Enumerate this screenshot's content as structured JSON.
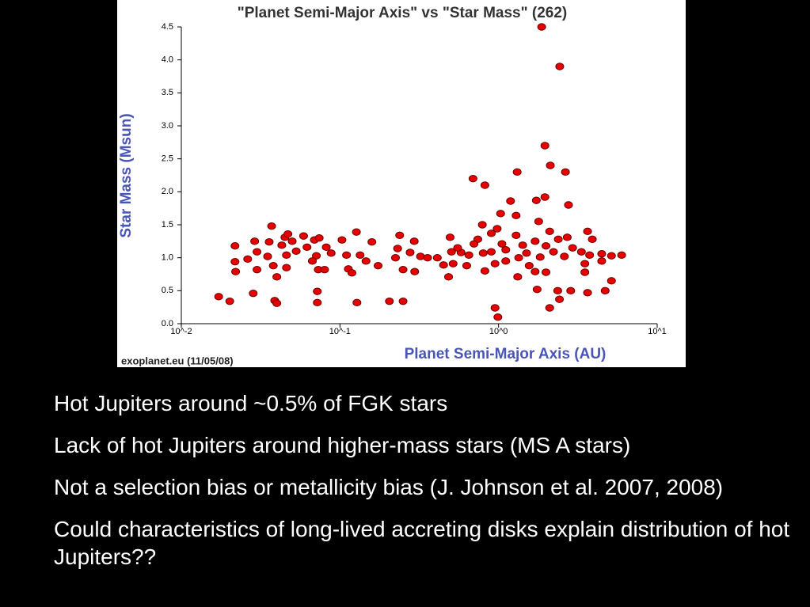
{
  "chart_data": {
    "type": "scatter",
    "title": "\"Planet Semi-Major Axis\"  vs \"Star Mass\" (262)",
    "x_label": "Planet Semi-Major Axis (AU)",
    "y_label": "Star Mass (Msun)",
    "source": "exoplanet.eu (11/05/08)",
    "x_scale": "log",
    "color": "#e80000",
    "xlim": [
      0.01,
      10
    ],
    "xticks": [
      {
        "value": 0.01,
        "label": "10^-2"
      },
      {
        "value": 0.1,
        "label": "10^-1"
      },
      {
        "value": 1,
        "label": "10^0"
      },
      {
        "value": 10,
        "label": "10^1"
      }
    ],
    "ylim": [
      0,
      4.5
    ],
    "yticks": [
      {
        "value": 0,
        "label": "0.0"
      },
      0.5,
      {
        "value": 1,
        "label": "1.0"
      },
      1.5,
      {
        "value": 2,
        "label": "2.0"
      },
      2.5,
      {
        "value": 3,
        "label": "3.0"
      },
      3.5,
      {
        "value": 4,
        "label": "4.0"
      },
      4.5
    ],
    "x": [
      1.87,
      2.43,
      1.96,
      2.12,
      2.64,
      1.31,
      0.69,
      0.82,
      1.96,
      1.73,
      2.76,
      1.19,
      1.03,
      1.29,
      1.79,
      0.79,
      0.98,
      0.9,
      2.1,
      3.64,
      1.29,
      0.74,
      3.9,
      2.71,
      2.38,
      1.7,
      1.05,
      1.42,
      1.99,
      2.93,
      0.7,
      1.11,
      0.8,
      0.9,
      1.5,
      2.22,
      3.33,
      4.47,
      5.15,
      5.97,
      1.34,
      1.83,
      2.6,
      3.75,
      0.65,
      0.58,
      1.11,
      0.95,
      1.56,
      1.99,
      1.7,
      0.82,
      1.32,
      3.5,
      2.36,
      2.85,
      1.75,
      2.42,
      2.1,
      3.64,
      4.7,
      5.15,
      0.95,
      0.99,
      3.5,
      4.47,
      0.0172,
      0.0202,
      0.0284,
      0.0218,
      0.0218,
      0.022,
      0.0262,
      0.029,
      0.03,
      0.03,
      0.0371,
      0.0358,
      0.035,
      0.038,
      0.04,
      0.0388,
      0.04,
      0.045,
      0.043,
      0.047,
      0.046,
      0.046,
      0.05,
      0.053,
      0.059,
      0.062,
      0.069,
      0.071,
      0.074,
      0.073,
      0.072,
      0.072,
      0.067,
      0.082,
      0.088,
      0.103,
      0.08,
      0.113,
      0.11,
      0.127,
      0.134,
      0.146,
      0.128,
      0.119,
      0.159,
      0.174,
      0.205,
      0.224,
      0.238,
      0.231,
      0.25,
      0.25,
      0.277,
      0.294,
      0.296,
      0.322,
      0.357,
      0.411,
      0.45,
      0.484,
      0.495,
      0.505,
      0.517,
      0.552,
      0.63
    ],
    "values": [
      4.5,
      3.9,
      2.7,
      2.4,
      2.3,
      2.3,
      2.2,
      2.1,
      1.92,
      1.87,
      1.8,
      1.86,
      1.67,
      1.64,
      1.55,
      1.5,
      1.44,
      1.37,
      1.4,
      1.4,
      1.34,
      1.28,
      1.28,
      1.31,
      1.28,
      1.25,
      1.21,
      1.19,
      1.18,
      1.15,
      1.21,
      1.12,
      1.07,
      1.09,
      1.07,
      1.09,
      1.09,
      1.06,
      1.03,
      1.04,
      1.0,
      1.01,
      1.02,
      1.04,
      1.04,
      1.08,
      0.95,
      0.91,
      0.88,
      0.78,
      0.79,
      0.8,
      0.71,
      0.91,
      0.5,
      0.5,
      0.52,
      0.37,
      0.24,
      0.47,
      0.5,
      0.65,
      0.24,
      0.1,
      0.78,
      0.95,
      0.41,
      0.34,
      0.46,
      1.18,
      0.94,
      0.79,
      0.98,
      1.25,
      1.09,
      0.82,
      1.48,
      1.24,
      1.02,
      0.88,
      0.71,
      0.35,
      0.31,
      1.31,
      1.19,
      1.36,
      1.04,
      0.85,
      1.25,
      1.1,
      1.33,
      1.16,
      1.27,
      1.03,
      1.3,
      0.82,
      0.49,
      0.32,
      0.95,
      1.16,
      1.07,
      1.27,
      0.82,
      0.83,
      1.04,
      1.39,
      1.04,
      0.95,
      0.32,
      0.77,
      1.24,
      0.88,
      0.34,
      1.0,
      1.34,
      1.14,
      0.82,
      0.34,
      1.08,
      1.25,
      0.79,
      1.02,
      1.0,
      1.0,
      0.89,
      0.71,
      1.31,
      1.09,
      0.91,
      1.15,
      0.88
    ]
  },
  "slide": {
    "bullets": [
      "Hot Jupiters around ~0.5% of FGK stars",
      "Lack of hot Jupiters around higher-mass stars (MS A stars)",
      "Not a selection bias or metallicity bias (J. Johnson et al. 2007, 2008)",
      "Could characteristics of long-lived accreting disks explain distribution of hot Jupiters??"
    ]
  }
}
